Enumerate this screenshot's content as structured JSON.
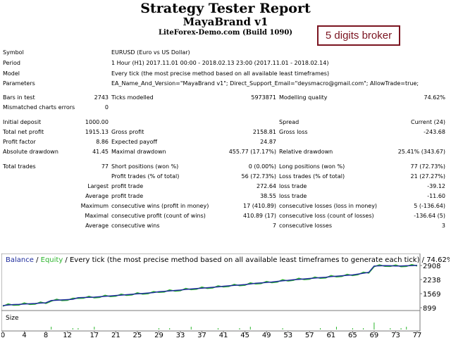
{
  "header": {
    "title": "Strategy Tester Report",
    "expert": "MayaBrand v1",
    "server": "LiteForex-Demo.com (Build 1090)",
    "badge": "5 digits broker"
  },
  "report": {
    "symbol_label": "Symbol",
    "symbol": "EURUSD (Euro vs US Dollar)",
    "period_label": "Period",
    "period": "1 Hour (H1) 2017.11.01 00:00 - 2018.02.13 23:00 (2017.11.01 - 2018.02.14)",
    "model_label": "Model",
    "model": "Every tick (the most precise method based on all available least timeframes)",
    "parameters_label": "Parameters",
    "parameters": "EA_Name_And_Version=\"MayaBrand v1\"; Direct_Support_Email=\"deysmacro@gmail.com\"; AllowTrade=true;",
    "bars_label": "Bars in test",
    "bars": "2743",
    "ticks_label": "Ticks modelled",
    "ticks": "5973871",
    "quality_label": "Modelling quality",
    "quality": "74.62%",
    "mismatch_label": "Mismatched charts errors",
    "mismatch": "0",
    "deposit_label": "Initial deposit",
    "deposit": "1000.00",
    "spread_label": "Spread",
    "spread": "Current (24)",
    "netprofit_label": "Total net profit",
    "netprofit": "1915.13",
    "grossprofit_label": "Gross profit",
    "grossprofit": "2158.81",
    "grossloss_label": "Gross loss",
    "grossloss": "-243.68",
    "pf_label": "Profit factor",
    "pf": "8.86",
    "payoff_label": "Expected payoff",
    "payoff": "24.87",
    "absdd_label": "Absolute drawdown",
    "absdd": "41.45",
    "maxdd_label": "Maximal drawdown",
    "maxdd": "455.77 (17.17%)",
    "reldd_label": "Relative drawdown",
    "reldd": "25.41% (343.67)",
    "trades_label": "Total trades",
    "trades": "77",
    "short_label": "Short positions (won %)",
    "short": "0 (0.00%)",
    "long_label": "Long positions (won %)",
    "long": "77 (72.73%)",
    "ptrades_label": "Profit trades (% of total)",
    "ptrades": "56 (72.73%)",
    "ltrades_label": "Loss trades (% of total)",
    "ltrades": "21 (27.27%)",
    "largest_label": "Largest",
    "lp_label": "profit trade",
    "lp": "272.64",
    "ll_label": "loss trade",
    "ll": "-39.12",
    "average_label": "Average",
    "ap_label": "profit trade",
    "ap": "38.55",
    "al_label": "loss trade",
    "al": "-11.60",
    "maximum_label": "Maximum",
    "mcw_label": "consecutive wins (profit in money)",
    "mcw": "17 (410.89)",
    "mcl_label": "consecutive losses (loss in money)",
    "mcl": "5 (-136.64)",
    "maximal_label": "Maximal",
    "mcp_label": "consecutive profit (count of wins)",
    "mcp": "410.89 (17)",
    "mcll_label": "consecutive loss (count of losses)",
    "mcll": "-136.64 (5)",
    "average2_label": "Average",
    "acw_label": "consecutive wins",
    "acw": "7",
    "acl_label": "consecutive losses",
    "acl": "3"
  },
  "chart_data": {
    "type": "line",
    "legend_balance": "Balance",
    "legend_sep": " / ",
    "legend_equity": "Equity",
    "legend_rest": " / Every tick (the most precise method based on all available least timeframes to generate each tick) / 74.62%",
    "size_label": "Size",
    "colors": {
      "balance": "#1f2d9c",
      "equity": "#2db52d",
      "size": "#2db52d"
    },
    "ylim": [
      899,
      2908
    ],
    "y_ticks": [
      "2908",
      "2238",
      "1569",
      "899"
    ],
    "x_ticks": [
      "0",
      "4",
      "8",
      "12",
      "17",
      "21",
      "25",
      "29",
      "33",
      "37",
      "41",
      "45",
      "49",
      "53",
      "57",
      "61",
      "65",
      "69",
      "73",
      "77"
    ],
    "series": [
      {
        "name": "Balance",
        "x": [
          0,
          1,
          2,
          3,
          4,
          5,
          6,
          7,
          8,
          9,
          10,
          11,
          12,
          13,
          14,
          15,
          16,
          17,
          18,
          19,
          20,
          21,
          22,
          23,
          24,
          25,
          26,
          27,
          28,
          29,
          30,
          31,
          32,
          33,
          34,
          35,
          36,
          37,
          38,
          39,
          40,
          41,
          42,
          43,
          44,
          45,
          46,
          47,
          48,
          49,
          50,
          51,
          52,
          53,
          54,
          55,
          56,
          57,
          58,
          59,
          60,
          61,
          62,
          63,
          64,
          65,
          66,
          67,
          68,
          69,
          70,
          71,
          72,
          73,
          74,
          75,
          76,
          77
        ],
        "values": [
          1000,
          1030,
          1050,
          1060,
          1075,
          1085,
          1100,
          1120,
          1135,
          1240,
          1255,
          1270,
          1285,
          1300,
          1375,
          1385,
          1390,
          1400,
          1420,
          1440,
          1460,
          1480,
          1500,
          1520,
          1540,
          1560,
          1580,
          1600,
          1620,
          1660,
          1680,
          1700,
          1720,
          1740,
          1770,
          1790,
          1810,
          1830,
          1850,
          1870,
          1890,
          1920,
          1940,
          1960,
          1980,
          2000,
          2030,
          2060,
          2080,
          2100,
          2120,
          2150,
          2180,
          2200,
          2230,
          2250,
          2270,
          2290,
          2310,
          2330,
          2350,
          2380,
          2400,
          2420,
          2440,
          2460,
          2500,
          2540,
          2580,
          2880,
          2890,
          2900,
          2895,
          2880,
          2885,
          2895,
          2900,
          2915
        ]
      }
    ]
  }
}
